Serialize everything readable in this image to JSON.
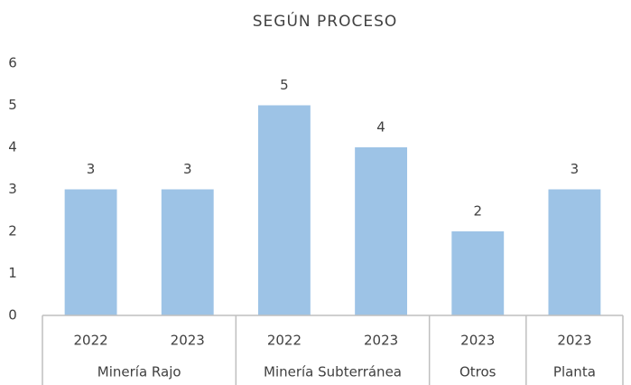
{
  "chart_data": {
    "type": "bar",
    "title": "SEGÚN PROCESO",
    "categories": [
      "2022",
      "2023",
      "2022",
      "2023",
      "2023",
      "2023"
    ],
    "category_groups": [
      "Minería Rajo",
      "Minería Rajo",
      "Minería Subterránea",
      "Minería Subterránea",
      "Otros",
      "Planta"
    ],
    "values": [
      3,
      3,
      5,
      4,
      2,
      3
    ],
    "color": "#9dc3e6",
    "ylim": [
      0,
      6
    ],
    "yticks": [
      0,
      1,
      2,
      3,
      4,
      5,
      6
    ],
    "grid": false
  }
}
